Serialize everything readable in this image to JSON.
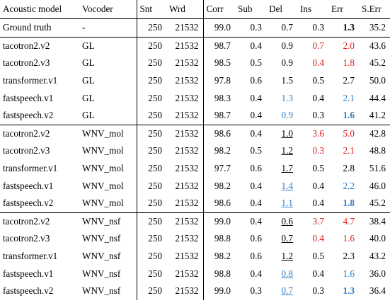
{
  "headers": [
    "Acoustic model",
    "Vocoder",
    "Snt",
    "Wrd",
    "Corr",
    "Sub",
    "Del",
    "Ins",
    "Err",
    "S.Err"
  ],
  "groups": [
    {
      "rows": [
        [
          "Ground truth",
          "-",
          "250",
          "21532",
          "99.0",
          "0.3",
          "0.7",
          "0.3",
          "1.3",
          "35.2"
        ]
      ]
    },
    {
      "rows": [
        [
          "tacotron2.v2",
          "GL",
          "250",
          "21532",
          "98.7",
          "0.4",
          "0.9",
          "0.7",
          "2.0",
          "43.6"
        ],
        [
          "tacotron2.v3",
          "GL",
          "250",
          "21532",
          "98.5",
          "0.5",
          "0.9",
          "0.4",
          "1.8",
          "45.2"
        ],
        [
          "transformer.v1",
          "GL",
          "250",
          "21532",
          "97.8",
          "0.6",
          "1.5",
          "0.5",
          "2.7",
          "50.0"
        ],
        [
          "fastspeech.v1",
          "GL",
          "250",
          "21532",
          "98.3",
          "0.4",
          "1.3",
          "0.4",
          "2.1",
          "44.4"
        ],
        [
          "fastspeech.v2",
          "GL",
          "250",
          "21532",
          "98.7",
          "0.4",
          "0.9",
          "0.3",
          "1.6",
          "41.2"
        ]
      ]
    },
    {
      "rows": [
        [
          "tacotron2.v2",
          "WNV_mol",
          "250",
          "21532",
          "98.6",
          "0.4",
          "1.0",
          "3.6",
          "5.0",
          "42.8"
        ],
        [
          "tacotron2.v3",
          "WNV_mol",
          "250",
          "21532",
          "98.2",
          "0.5",
          "1.2",
          "0.3",
          "2.1",
          "48.8"
        ],
        [
          "transformer.v1",
          "WNV_mol",
          "250",
          "21532",
          "97.7",
          "0.6",
          "1.7",
          "0.5",
          "2.8",
          "51.6"
        ],
        [
          "fastspeech.v1",
          "WNV_mol",
          "250",
          "21532",
          "98.2",
          "0.4",
          "1.4",
          "0.4",
          "2.2",
          "46.0"
        ],
        [
          "fastspeech.v2",
          "WNV_mol",
          "250",
          "21532",
          "98.6",
          "0.4",
          "1.1",
          "0.4",
          "1.8",
          "45.2"
        ]
      ]
    },
    {
      "rows": [
        [
          "tacotron2.v2",
          "WNV_nsf",
          "250",
          "21532",
          "99.0",
          "0.4",
          "0.6",
          "3.7",
          "4.7",
          "38.4"
        ],
        [
          "tacotron2.v3",
          "WNV_nsf",
          "250",
          "21532",
          "98.8",
          "0.6",
          "0.7",
          "0.4",
          "1.6",
          "40.0"
        ],
        [
          "transformer.v1",
          "WNV_nsf",
          "250",
          "21532",
          "98.2",
          "0.6",
          "1.2",
          "0.5",
          "2.3",
          "43.2"
        ],
        [
          "fastspeech.v1",
          "WNV_nsf",
          "250",
          "21532",
          "98.8",
          "0.4",
          "0.8",
          "0.4",
          "1.6",
          "36.0"
        ],
        [
          "fastspeech.v2",
          "WNV_nsf",
          "250",
          "21532",
          "99.0",
          "0.3",
          "0.7",
          "0.3",
          "1.3",
          "36.4"
        ]
      ]
    }
  ],
  "colors": {
    "red": "#e02020",
    "blue": "#2c7ec9",
    "text": "#000000"
  }
}
